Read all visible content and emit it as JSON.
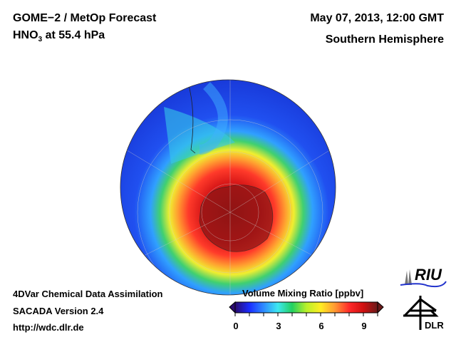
{
  "header": {
    "title": "GOME−2 / MetOp Forecast",
    "species_main": "HNO",
    "species_sub": "3",
    "species_level": " at 55.4 hPa",
    "datetime": "May 07, 2013, 12:00 GMT",
    "region": "Southern Hemisphere"
  },
  "footer": {
    "line1": "4DVar Chemical Data Assimilation",
    "line2": "SACADA Version 2.4",
    "url": "http://wdc.dlr.de"
  },
  "colorbar": {
    "title": "Volume Mixing Ratio [ppbv]",
    "min": 0,
    "max": 10,
    "ticks": [
      "0",
      "3",
      "6",
      "9"
    ],
    "colors": [
      "#2a0a6e",
      "#1a2cff",
      "#2e8bff",
      "#3ee8f0",
      "#22d060",
      "#b8f02a",
      "#ffee22",
      "#ff9933",
      "#ff2a2a",
      "#d01010",
      "#6a1a1a"
    ]
  },
  "logos": {
    "riu": "RIU",
    "dlr": "DLR"
  }
}
